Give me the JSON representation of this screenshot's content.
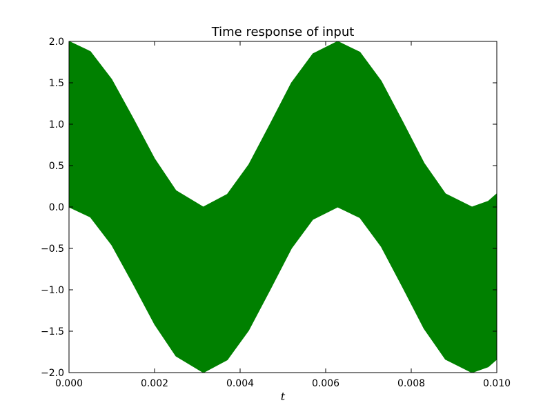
{
  "chart_data": {
    "type": "area",
    "title": "Time response of input",
    "xlabel": "t",
    "ylabel": "",
    "xlim": [
      0.0,
      0.01
    ],
    "ylim": [
      -2.0,
      2.0
    ],
    "grid": false,
    "legend": "none",
    "x_ticks": [
      "0.000",
      "0.002",
      "0.004",
      "0.006",
      "0.008",
      "0.010"
    ],
    "y_ticks": [
      "2.0",
      "1.5",
      "1.0",
      "0.5",
      "0.0",
      "−0.5",
      "−1.0",
      "−1.5",
      "−2.0"
    ],
    "series": [
      {
        "color": "#008000",
        "envelope": {
          "x": [
            0.0,
            0.0005,
            0.001,
            0.0015,
            0.002,
            0.0025,
            0.00314,
            0.0037,
            0.0042,
            0.0047,
            0.0052,
            0.0057,
            0.00628,
            0.0068,
            0.0073,
            0.0078,
            0.0083,
            0.0088,
            0.00942,
            0.0098,
            0.01
          ],
          "upper": [
            2.0,
            1.878,
            1.54,
            1.07,
            0.584,
            0.199,
            0.0,
            0.154,
            0.51,
            1.0,
            1.5,
            1.85,
            2.0,
            1.87,
            1.52,
            1.03,
            0.53,
            0.16,
            0.0,
            0.07,
            0.16
          ],
          "lower": [
            0.0,
            -0.122,
            -0.46,
            -0.93,
            -1.416,
            -1.801,
            -2.0,
            -1.846,
            -1.49,
            -1.0,
            -0.5,
            -0.15,
            0.0,
            -0.13,
            -0.48,
            -0.97,
            -1.47,
            -1.84,
            -2.0,
            -1.93,
            -1.84
          ]
        }
      }
    ]
  }
}
